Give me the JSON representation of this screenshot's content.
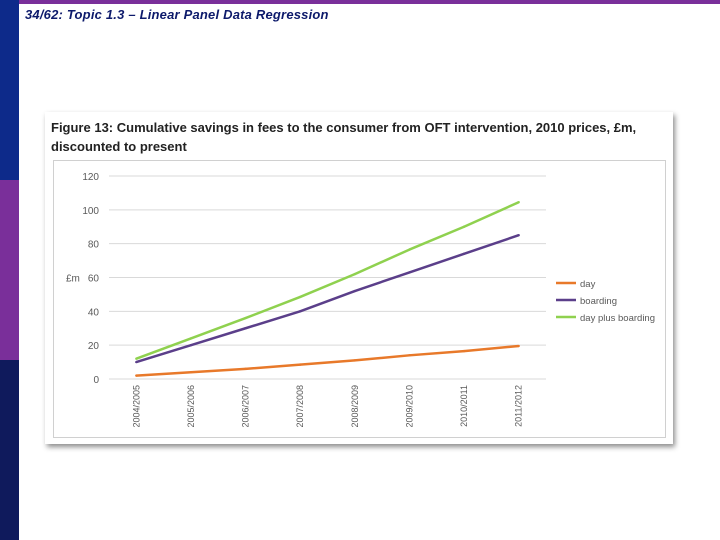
{
  "slide": {
    "title": "34/62: Topic 1.3 – Linear Panel Data Regression"
  },
  "figure": {
    "caption": "Figure 13: Cumulative savings in fees to the consumer from OFT intervention, 2010 prices, £m, discounted to present"
  },
  "colors": {
    "day": "#e8792a",
    "boarding": "#5b3f8a",
    "day_plus_boarding": "#8fd14f",
    "grid": "#d9d9d9",
    "text": "#595959"
  },
  "chart_data": {
    "type": "line",
    "title": "",
    "xlabel": "",
    "ylabel": "£m",
    "ylim": [
      0,
      120
    ],
    "yticks": [
      0,
      20,
      40,
      60,
      80,
      100,
      120
    ],
    "ytick_labels": [
      "0",
      "20",
      "40",
      "60",
      "80",
      "100",
      "120"
    ],
    "categories": [
      "2004/2005",
      "2005/2006",
      "2006/2007",
      "2007/2008",
      "2008/2009",
      "2009/2010",
      "2010/2011",
      "2011/2012"
    ],
    "category_labels": [
      "2004/2005",
      "2005/2006",
      "2006/2007",
      "2007/2008",
      "2008/2009",
      "2009/2010",
      "2010/2011",
      "2011/2012"
    ],
    "legend_position": "right",
    "series": [
      {
        "name": "day",
        "color_key": "day",
        "values": [
          2,
          4,
          6,
          8.5,
          11,
          14,
          16.5,
          19.5
        ]
      },
      {
        "name": "boarding",
        "color_key": "boarding",
        "values": [
          10,
          20,
          30,
          40,
          52,
          63,
          74,
          85
        ]
      },
      {
        "name": "day plus boarding",
        "color_key": "day_plus_boarding",
        "values": [
          12,
          24,
          36,
          48.5,
          62,
          76.5,
          90,
          104.5
        ]
      }
    ]
  }
}
